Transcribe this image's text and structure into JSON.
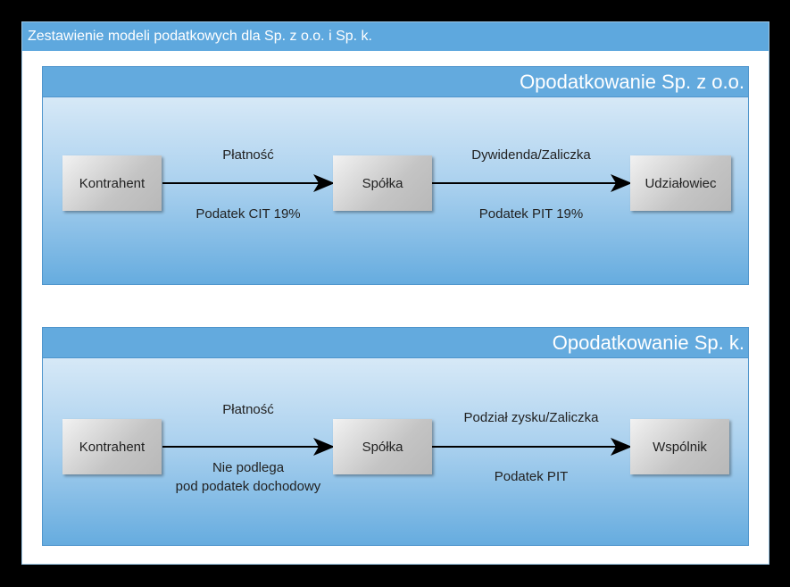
{
  "title": "Zestawienie modeli podatkowych dla Sp. z o.o. i Sp. k.",
  "panels": [
    {
      "heading": "Opodatkowanie Sp. z o.o.",
      "nodes": [
        "Kontrahent",
        "Spółka",
        "Udziałowiec"
      ],
      "edges": [
        {
          "above": "Płatność",
          "below": "Podatek CIT 19%"
        },
        {
          "above": "Dywidenda/Zaliczka",
          "below": "Podatek PIT 19%"
        }
      ]
    },
    {
      "heading": "Opodatkowanie Sp. k.",
      "nodes": [
        "Kontrahent",
        "Spółka",
        "Wspólnik"
      ],
      "edges": [
        {
          "above": "Płatność",
          "below_line1": "Nie podlega",
          "below_line2": "pod podatek dochodowy"
        },
        {
          "above": "Podział zysku/Zaliczka",
          "below": "Podatek PIT"
        }
      ]
    }
  ]
}
